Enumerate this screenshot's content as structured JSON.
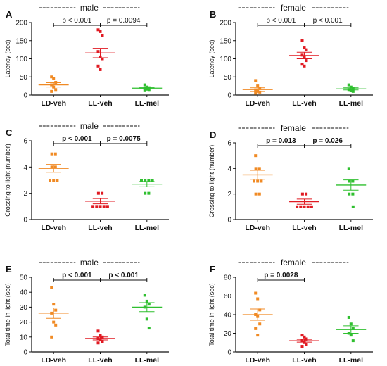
{
  "colors": {
    "LD-veh": "#f08a24",
    "LL-veh": "#e01a22",
    "LL-mel": "#2fbf2f"
  },
  "chart_data": [
    {
      "id": "A",
      "type": "scatter",
      "panel_label": "A",
      "title": "male",
      "ylabel": "Latency (sec)",
      "categories": [
        "LD-veh",
        "LL-veh",
        "LL-mel"
      ],
      "ylim": [
        0,
        200
      ],
      "yticks": [
        0,
        50,
        100,
        150,
        200
      ],
      "series": [
        {
          "name": "LD-veh",
          "values": [
            50,
            45,
            35,
            28,
            22,
            15,
            10
          ]
        },
        {
          "name": "LL-veh",
          "values": [
            180,
            175,
            165,
            120,
            105,
            100,
            80,
            70
          ]
        },
        {
          "name": "LL-mel",
          "values": [
            28,
            22,
            20,
            18,
            16,
            15,
            14
          ]
        }
      ],
      "means": [
        28,
        116,
        19
      ],
      "sems": [
        6,
        13,
        2
      ],
      "comparisons": [
        {
          "from": 0,
          "to": 1,
          "label": "p < 0.001"
        },
        {
          "from": 1,
          "to": 2,
          "label": "p = 0.0094"
        }
      ]
    },
    {
      "id": "B",
      "type": "scatter",
      "panel_label": "B",
      "title": "female",
      "ylabel": "Latency (sec)",
      "categories": [
        "LD-veh",
        "LL-veh",
        "LL-mel"
      ],
      "ylim": [
        0,
        200
      ],
      "yticks": [
        0,
        50,
        100,
        150,
        200
      ],
      "series": [
        {
          "name": "LD-veh",
          "values": [
            40,
            25,
            18,
            14,
            10,
            8,
            5
          ]
        },
        {
          "name": "LL-veh",
          "values": [
            150,
            130,
            125,
            110,
            105,
            95,
            85,
            80
          ]
        },
        {
          "name": "LL-mel",
          "values": [
            28,
            22,
            18,
            15,
            12,
            10
          ]
        }
      ],
      "means": [
        15,
        109,
        17
      ],
      "sems": [
        5,
        9,
        3
      ],
      "comparisons": [
        {
          "from": 0,
          "to": 1,
          "label": "p < 0.001"
        },
        {
          "from": 1,
          "to": 2,
          "label": "p < 0.001"
        }
      ]
    },
    {
      "id": "C",
      "type": "scatter",
      "panel_label": "C",
      "title": "male",
      "ylabel": "Crossing to light (number)",
      "categories": [
        "LD-veh",
        "LL-veh",
        "LL-mel"
      ],
      "ylim": [
        0,
        6
      ],
      "yticks": [
        0,
        2,
        4,
        6
      ],
      "series": [
        {
          "name": "LD-veh",
          "values": [
            5,
            5,
            4,
            4,
            3,
            3,
            3
          ]
        },
        {
          "name": "LL-veh",
          "values": [
            2,
            2,
            1,
            1,
            1,
            1,
            1
          ]
        },
        {
          "name": "LL-mel",
          "values": [
            3,
            3,
            3,
            3,
            2,
            2
          ]
        }
      ],
      "means": [
        3.9,
        1.4,
        2.7
      ],
      "sems": [
        0.3,
        0.2,
        0.2
      ],
      "comparisons": [
        {
          "from": 0,
          "to": 1,
          "label": "p < 0.001"
        },
        {
          "from": 1,
          "to": 2,
          "label": "p = 0.0075"
        }
      ]
    },
    {
      "id": "D",
      "type": "scatter",
      "panel_label": "D",
      "title": "female",
      "ylabel": "Crossing to light (number)",
      "categories": [
        "LD-veh",
        "LL-veh",
        "LL-mel"
      ],
      "ylim": [
        0,
        6
      ],
      "yticks": [
        0,
        2,
        4,
        6
      ],
      "series": [
        {
          "name": "LD-veh",
          "values": [
            5,
            4,
            4,
            3,
            3,
            3,
            2,
            2
          ]
        },
        {
          "name": "LL-veh",
          "values": [
            2,
            2,
            1,
            1,
            1,
            1,
            1
          ]
        },
        {
          "name": "LL-mel",
          "values": [
            4,
            3,
            3,
            2,
            2,
            1
          ]
        }
      ],
      "means": [
        3.5,
        1.4,
        2.7
      ],
      "sems": [
        0.35,
        0.2,
        0.4
      ],
      "comparisons": [
        {
          "from": 0,
          "to": 1,
          "label": "p = 0.013"
        },
        {
          "from": 1,
          "to": 2,
          "label": "p = 0.026"
        }
      ]
    },
    {
      "id": "E",
      "type": "scatter",
      "panel_label": "E",
      "title": "male",
      "ylabel": "Total time in light (sec)",
      "categories": [
        "LD-veh",
        "LL-veh",
        "LL-mel"
      ],
      "ylim": [
        0,
        50
      ],
      "yticks": [
        0,
        10,
        20,
        30,
        40,
        50
      ],
      "series": [
        {
          "name": "LD-veh",
          "values": [
            43,
            32,
            28,
            26,
            20,
            18,
            10
          ]
        },
        {
          "name": "LL-veh",
          "values": [
            14,
            11,
            10,
            9,
            8,
            7,
            6
          ]
        },
        {
          "name": "LL-mel",
          "values": [
            38,
            34,
            32,
            30,
            22,
            16
          ]
        }
      ],
      "means": [
        26,
        9,
        30
      ],
      "sems": [
        3.5,
        1,
        3
      ],
      "comparisons": [
        {
          "from": 0,
          "to": 1,
          "label": "p < 0.001"
        },
        {
          "from": 1,
          "to": 2,
          "label": "p < 0.001"
        }
      ]
    },
    {
      "id": "F",
      "type": "scatter",
      "panel_label": "F",
      "title": "female",
      "ylabel": "Total time in light (sec)",
      "categories": [
        "LD-veh",
        "LL-veh",
        "LL-mel"
      ],
      "ylim": [
        0,
        80
      ],
      "yticks": [
        0,
        20,
        40,
        60,
        80
      ],
      "series": [
        {
          "name": "LD-veh",
          "values": [
            63,
            57,
            45,
            40,
            38,
            30,
            25,
            18
          ]
        },
        {
          "name": "LL-veh",
          "values": [
            18,
            16,
            14,
            12,
            10,
            8,
            6
          ]
        },
        {
          "name": "LL-mel",
          "values": [
            37,
            30,
            25,
            20,
            18,
            12
          ]
        }
      ],
      "means": [
        40,
        12,
        24
      ],
      "sems": [
        6,
        1.5,
        4
      ],
      "comparisons": [
        {
          "from": 0,
          "to": 1,
          "label": "p = 0.0028"
        }
      ]
    }
  ]
}
